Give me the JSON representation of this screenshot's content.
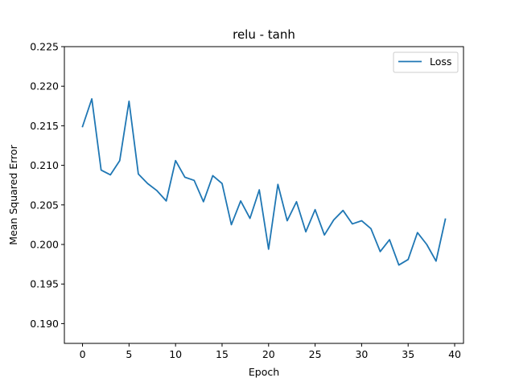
{
  "chart_data": {
    "type": "line",
    "title": "relu - tanh",
    "xlabel": "Epoch",
    "ylabel": "Mean Squared Error",
    "xlim": [
      -1.95,
      40.95
    ],
    "ylim": [
      0.1875,
      0.225
    ],
    "xticks": [
      0,
      5,
      10,
      15,
      20,
      25,
      30,
      35,
      40
    ],
    "xtick_labels": [
      "0",
      "5",
      "10",
      "15",
      "20",
      "25",
      "30",
      "35",
      "40"
    ],
    "yticks": [
      0.19,
      0.195,
      0.2,
      0.205,
      0.21,
      0.215,
      0.22,
      0.225
    ],
    "ytick_labels": [
      "0.190",
      "0.195",
      "0.200",
      "0.205",
      "0.210",
      "0.215",
      "0.220",
      "0.225"
    ],
    "grid": false,
    "legend_position": "top-right",
    "series": [
      {
        "name": "Loss",
        "color": "#1f77b4",
        "x": [
          0,
          1,
          2,
          3,
          4,
          5,
          6,
          7,
          8,
          9,
          10,
          11,
          12,
          13,
          14,
          15,
          16,
          17,
          18,
          19,
          20,
          21,
          22,
          23,
          24,
          25,
          26,
          27,
          28,
          29,
          30,
          31,
          32,
          33,
          34,
          35,
          36,
          37,
          38,
          39
        ],
        "y": [
          0.2149,
          0.2184,
          0.2094,
          0.2088,
          0.2106,
          0.2181,
          0.2089,
          0.2077,
          0.2068,
          0.2055,
          0.2106,
          0.2085,
          0.2081,
          0.2054,
          0.2087,
          0.2077,
          0.2025,
          0.2055,
          0.2033,
          0.2069,
          0.1994,
          0.2076,
          0.203,
          0.2054,
          0.2016,
          0.2044,
          0.2012,
          0.2031,
          0.2043,
          0.2026,
          0.203,
          0.202,
          0.1991,
          0.2006,
          0.1974,
          0.1981,
          0.2015,
          0.2,
          0.1979,
          0.2032
        ]
      }
    ]
  }
}
